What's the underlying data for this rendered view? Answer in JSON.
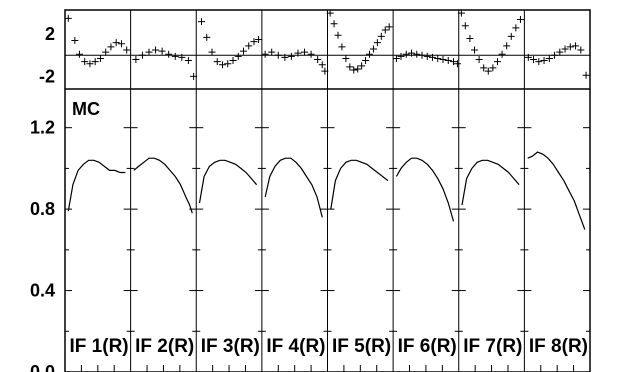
{
  "chart_data": {
    "type": "line",
    "panels": [
      {
        "label": "IF 1(R)"
      },
      {
        "label": "IF 2(R)"
      },
      {
        "label": "IF 3(R)"
      },
      {
        "label": "IF 4(R)"
      },
      {
        "label": "IF 5(R)"
      },
      {
        "label": "IF 6(R)"
      },
      {
        "label": "IF 7(R)"
      },
      {
        "label": "IF 8(R)"
      }
    ],
    "top": {
      "ylim": [
        -3.2,
        4.3
      ],
      "yticks": [
        "2",
        "-2"
      ],
      "ytick_values": [
        2,
        -2
      ],
      "baseline": 0,
      "marker": "+",
      "series": [
        {
          "x": [
            0.05,
            0.15,
            0.22,
            0.3,
            0.38,
            0.46,
            0.54,
            0.62,
            0.7,
            0.78,
            0.86,
            0.94
          ],
          "y": [
            3.5,
            1.4,
            0.1,
            -0.6,
            -0.8,
            -0.6,
            -0.3,
            0.3,
            0.8,
            1.2,
            1.1,
            0.5
          ]
        },
        {
          "x": [
            0.08,
            0.18,
            0.28,
            0.38,
            0.48,
            0.58,
            0.68,
            0.78,
            0.88,
            0.96
          ],
          "y": [
            -0.4,
            0.0,
            0.3,
            0.5,
            0.4,
            0.1,
            -0.1,
            -0.2,
            -0.5,
            -2.0
          ]
        },
        {
          "x": [
            0.08,
            0.16,
            0.24,
            0.32,
            0.4,
            0.48,
            0.56,
            0.64,
            0.72,
            0.8,
            0.88,
            0.95
          ],
          "y": [
            3.2,
            1.7,
            0.3,
            -0.6,
            -0.9,
            -0.8,
            -0.5,
            -0.1,
            0.4,
            0.9,
            1.3,
            1.5
          ]
        },
        {
          "x": [
            0.05,
            0.15,
            0.25,
            0.35,
            0.45,
            0.55,
            0.65,
            0.75,
            0.85,
            0.92,
            0.96
          ],
          "y": [
            0.1,
            0.3,
            0.0,
            -0.2,
            -0.1,
            0.2,
            0.3,
            0.1,
            -0.4,
            -0.9,
            -1.5
          ]
        },
        {
          "x": [
            0.04,
            0.1,
            0.16,
            0.22,
            0.28,
            0.34,
            0.4,
            0.46,
            0.52,
            0.58,
            0.64,
            0.7,
            0.76,
            0.82,
            0.88,
            0.94
          ],
          "y": [
            4.0,
            3.0,
            1.9,
            0.8,
            -0.3,
            -1.1,
            -1.4,
            -1.3,
            -1.0,
            -0.5,
            0.1,
            0.6,
            1.2,
            1.8,
            2.4,
            2.7
          ]
        },
        {
          "x": [
            0.05,
            0.12,
            0.2,
            0.28,
            0.36,
            0.44,
            0.52,
            0.6,
            0.68,
            0.76,
            0.84,
            0.92,
            0.98
          ],
          "y": [
            -0.3,
            -0.1,
            0.1,
            0.2,
            0.1,
            0.0,
            -0.1,
            -0.2,
            -0.3,
            -0.4,
            -0.5,
            -0.6,
            -0.8
          ]
        },
        {
          "x": [
            0.04,
            0.1,
            0.17,
            0.24,
            0.31,
            0.38,
            0.45,
            0.52,
            0.59,
            0.66,
            0.73,
            0.8,
            0.87,
            0.94
          ],
          "y": [
            4.0,
            2.8,
            1.6,
            0.5,
            -0.4,
            -1.2,
            -1.5,
            -1.2,
            -0.6,
            0.1,
            0.9,
            1.8,
            2.6,
            3.4
          ]
        },
        {
          "x": [
            0.06,
            0.14,
            0.22,
            0.3,
            0.38,
            0.46,
            0.54,
            0.62,
            0.7,
            0.78,
            0.86,
            0.94
          ],
          "y": [
            -0.2,
            -0.4,
            -0.6,
            -0.5,
            -0.3,
            0.0,
            0.3,
            0.6,
            0.8,
            0.9,
            0.5,
            -1.9
          ]
        }
      ]
    },
    "bottom": {
      "annotation": "MC",
      "ylim": [
        0.0,
        1.39
      ],
      "yticks": [
        "1.2",
        "0.8",
        "0.4",
        "0.0"
      ],
      "ytick_values": [
        1.2,
        0.8,
        0.4,
        0.0
      ],
      "series": [
        {
          "x": [
            0.05,
            0.12,
            0.2,
            0.28,
            0.36,
            0.44,
            0.52,
            0.6,
            0.68,
            0.76,
            0.84,
            0.92
          ],
          "y": [
            0.79,
            0.92,
            0.99,
            1.02,
            1.04,
            1.04,
            1.03,
            1.01,
            0.99,
            0.99,
            0.98,
            0.98
          ]
        },
        {
          "x": [
            0.05,
            0.12,
            0.2,
            0.28,
            0.36,
            0.44,
            0.52,
            0.6,
            0.68,
            0.76,
            0.84,
            0.9,
            0.94
          ],
          "y": [
            0.99,
            1.01,
            1.03,
            1.05,
            1.05,
            1.04,
            1.02,
            0.99,
            0.96,
            0.92,
            0.86,
            0.82,
            0.78
          ]
        },
        {
          "x": [
            0.05,
            0.12,
            0.2,
            0.28,
            0.36,
            0.44,
            0.52,
            0.6,
            0.68,
            0.76,
            0.84,
            0.92
          ],
          "y": [
            0.83,
            0.96,
            1.01,
            1.03,
            1.04,
            1.04,
            1.03,
            1.02,
            1.0,
            0.98,
            0.95,
            0.92
          ]
        },
        {
          "x": [
            0.05,
            0.12,
            0.2,
            0.28,
            0.36,
            0.44,
            0.52,
            0.6,
            0.68,
            0.76,
            0.84,
            0.92
          ],
          "y": [
            0.86,
            0.96,
            1.01,
            1.04,
            1.05,
            1.05,
            1.03,
            1.0,
            0.96,
            0.92,
            0.86,
            0.76
          ]
        },
        {
          "x": [
            0.05,
            0.12,
            0.2,
            0.28,
            0.36,
            0.44,
            0.52,
            0.6,
            0.68,
            0.76,
            0.84,
            0.92
          ],
          "y": [
            0.8,
            0.94,
            1.0,
            1.03,
            1.04,
            1.04,
            1.03,
            1.02,
            1.0,
            0.98,
            0.96,
            0.94
          ]
        },
        {
          "x": [
            0.05,
            0.12,
            0.2,
            0.28,
            0.36,
            0.44,
            0.52,
            0.6,
            0.68,
            0.76,
            0.84,
            0.92
          ],
          "y": [
            0.96,
            1.0,
            1.03,
            1.05,
            1.05,
            1.04,
            1.02,
            0.99,
            0.95,
            0.9,
            0.83,
            0.74
          ]
        },
        {
          "x": [
            0.05,
            0.12,
            0.2,
            0.28,
            0.36,
            0.44,
            0.52,
            0.6,
            0.68,
            0.76,
            0.84,
            0.92
          ],
          "y": [
            0.82,
            0.95,
            1.0,
            1.03,
            1.04,
            1.04,
            1.03,
            1.02,
            1.0,
            0.98,
            0.95,
            0.92
          ]
        },
        {
          "x": [
            0.05,
            0.12,
            0.2,
            0.28,
            0.36,
            0.44,
            0.52,
            0.6,
            0.68,
            0.76,
            0.84,
            0.92
          ],
          "y": [
            1.05,
            1.06,
            1.08,
            1.07,
            1.05,
            1.02,
            0.98,
            0.94,
            0.89,
            0.84,
            0.77,
            0.7
          ]
        }
      ]
    }
  }
}
